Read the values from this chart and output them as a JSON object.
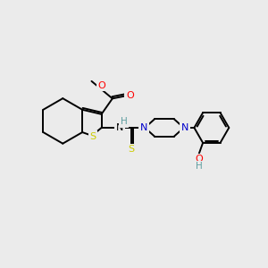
{
  "bg_color": "#ebebeb",
  "atom_colors": {
    "C": "#000000",
    "N": "#0000cd",
    "O": "#ff0000",
    "S": "#cccc00",
    "H_teal": "#5f9ea0"
  },
  "figsize": [
    3.0,
    3.0
  ],
  "dpi": 100
}
